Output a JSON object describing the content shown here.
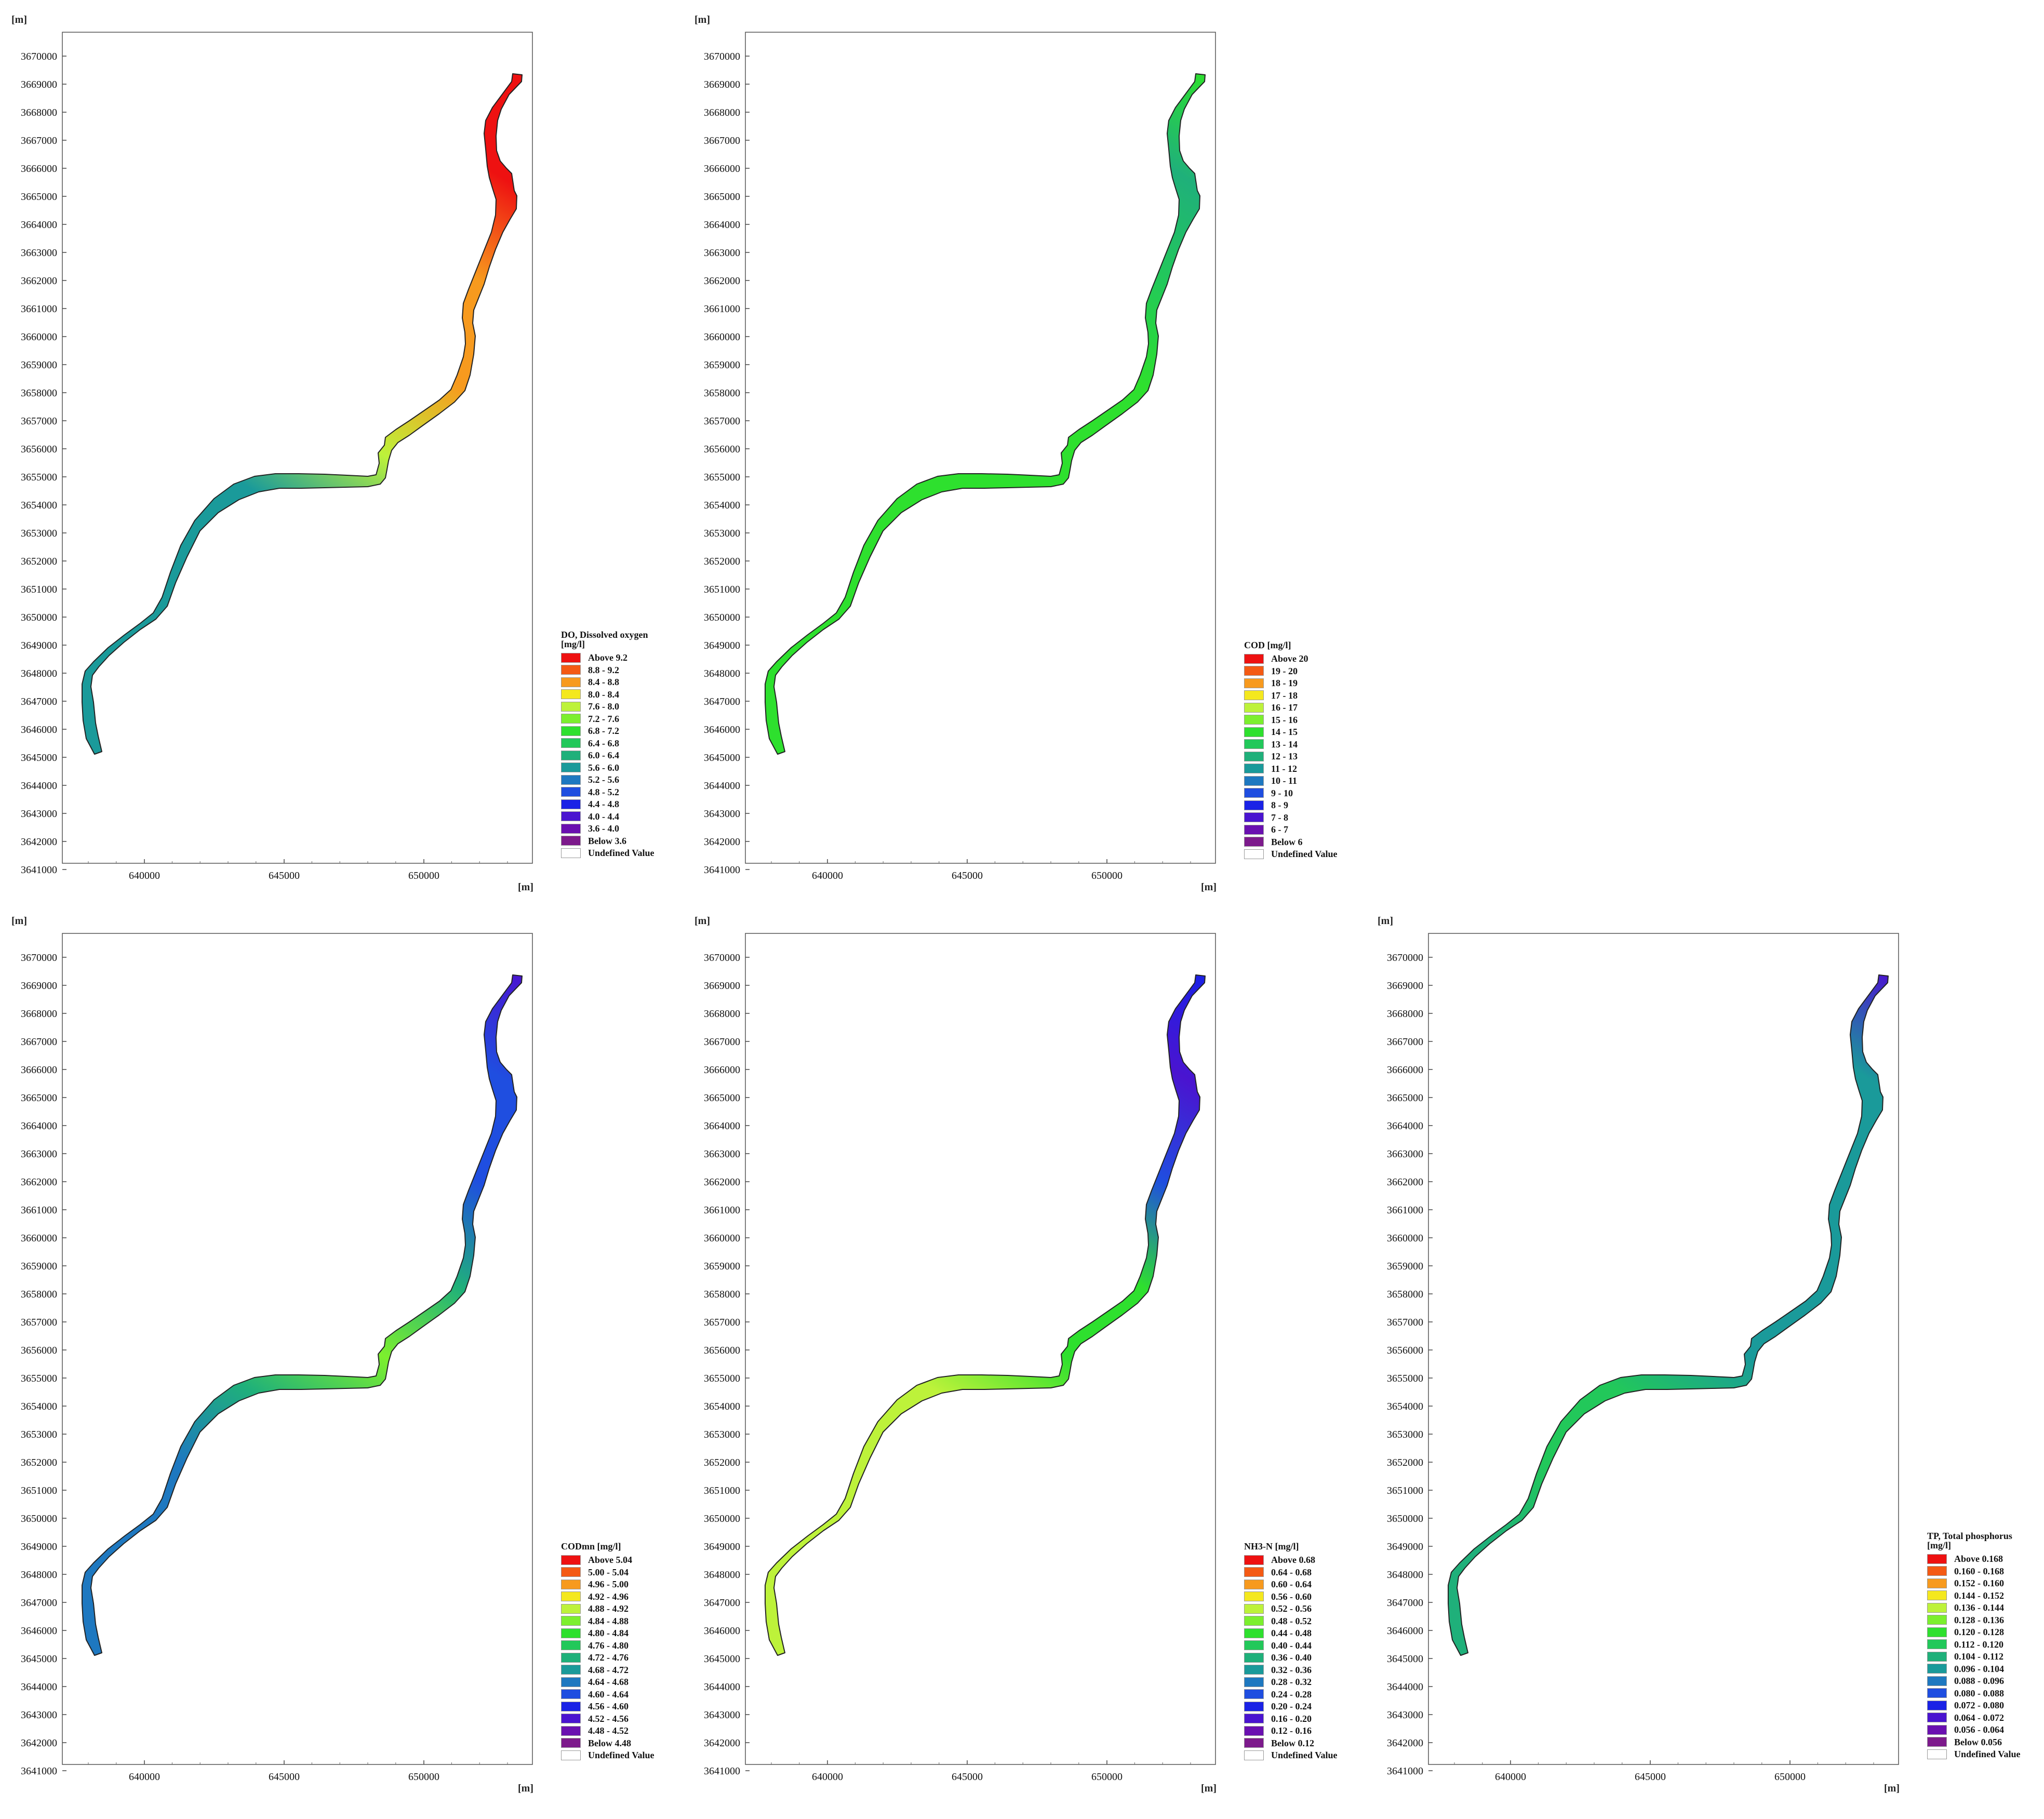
{
  "axis": {
    "unit": "[m]",
    "y_ticks": [
      "3670000",
      "3669000",
      "3668000",
      "3667000",
      "3666000",
      "3665000",
      "3664000",
      "3663000",
      "3662000",
      "3661000",
      "3660000",
      "3659000",
      "3658000",
      "3657000",
      "3656000",
      "3655000",
      "3654000",
      "3653000",
      "3652000",
      "3651000",
      "3650000",
      "3649000",
      "3648000",
      "3647000",
      "3646000",
      "3645000",
      "3644000",
      "3643000",
      "3642000",
      "3641000"
    ],
    "x_ticks": [
      "640000",
      "645000",
      "650000"
    ]
  },
  "panels": [
    {
      "id": "do",
      "legend_title": "DO, Dissolved oxygen\n[mg/l]",
      "legend": [
        {
          "label": "Above 9.2",
          "color": "#ee1111"
        },
        {
          "label": "8.8 - 9.2",
          "color": "#f45a14"
        },
        {
          "label": "8.4 - 8.8",
          "color": "#f79a1e"
        },
        {
          "label": "8.0 - 8.4",
          "color": "#f4e81e"
        },
        {
          "label": "7.6 - 8.0",
          "color": "#bdf23a"
        },
        {
          "label": "7.2 - 7.6",
          "color": "#7cef2e"
        },
        {
          "label": "6.8 - 7.2",
          "color": "#2ee02e"
        },
        {
          "label": "6.4 - 6.8",
          "color": "#22c85a"
        },
        {
          "label": "6.0 - 6.4",
          "color": "#1fb07a"
        },
        {
          "label": "5.6 - 6.0",
          "color": "#1a9a9a"
        },
        {
          "label": "5.2 - 5.6",
          "color": "#1e78c0"
        },
        {
          "label": "4.8 - 5.2",
          "color": "#1f4ee0"
        },
        {
          "label": "4.4 - 4.8",
          "color": "#1a22e6"
        },
        {
          "label": "4.0 - 4.4",
          "color": "#4a14d0"
        },
        {
          "label": "3.6 - 4.0",
          "color": "#6a10b0"
        },
        {
          "label": "Below 3.6",
          "color": "#7d1a8c"
        },
        {
          "label": "Undefined Value",
          "color": "#ffffff"
        }
      ],
      "fill_stops": [
        "#1a9a9a",
        "#1a9a9a",
        "#1a9a9a",
        "#1a9a9a",
        "#bdf23a",
        "#f79a1e",
        "#f79a1e",
        "#ee1111",
        "#ee1111"
      ]
    },
    {
      "id": "cod",
      "legend_title": "COD [mg/l]",
      "legend": [
        {
          "label": "Above 20",
          "color": "#ee1111"
        },
        {
          "label": "19 - 20",
          "color": "#f45a14"
        },
        {
          "label": "18 - 19",
          "color": "#f79a1e"
        },
        {
          "label": "17 - 18",
          "color": "#f4e81e"
        },
        {
          "label": "16 - 17",
          "color": "#bdf23a"
        },
        {
          "label": "15 - 16",
          "color": "#7cef2e"
        },
        {
          "label": "14 - 15",
          "color": "#2ee02e"
        },
        {
          "label": "13 - 14",
          "color": "#22c85a"
        },
        {
          "label": "12 - 13",
          "color": "#1fb07a"
        },
        {
          "label": "11 - 12",
          "color": "#1a9a9a"
        },
        {
          "label": "10 - 11",
          "color": "#1e78c0"
        },
        {
          "label": "9 - 10",
          "color": "#1f4ee0"
        },
        {
          "label": "8 -  9",
          "color": "#1a22e6"
        },
        {
          "label": "7 -  8",
          "color": "#4a14d0"
        },
        {
          "label": "6 -  7",
          "color": "#6a10b0"
        },
        {
          "label": "Below  6",
          "color": "#7d1a8c"
        },
        {
          "label": "Undefined Value",
          "color": "#ffffff"
        }
      ],
      "fill_stops": [
        "#2ee02e",
        "#2ee02e",
        "#2ee02e",
        "#2ee02e",
        "#2ee02e",
        "#2ee02e",
        "#22c85a",
        "#1fb07a",
        "#2ee02e"
      ]
    },
    {
      "id": "codmn",
      "legend_title": "CODmn [mg/l]",
      "legend": [
        {
          "label": "Above 5.04",
          "color": "#ee1111"
        },
        {
          "label": "5.00 - 5.04",
          "color": "#f45a14"
        },
        {
          "label": "4.96 - 5.00",
          "color": "#f79a1e"
        },
        {
          "label": "4.92 - 4.96",
          "color": "#f4e81e"
        },
        {
          "label": "4.88 - 4.92",
          "color": "#bdf23a"
        },
        {
          "label": "4.84 - 4.88",
          "color": "#7cef2e"
        },
        {
          "label": "4.80 - 4.84",
          "color": "#2ee02e"
        },
        {
          "label": "4.76 - 4.80",
          "color": "#22c85a"
        },
        {
          "label": "4.72 - 4.76",
          "color": "#1fb07a"
        },
        {
          "label": "4.68 - 4.72",
          "color": "#1a9a9a"
        },
        {
          "label": "4.64 - 4.68",
          "color": "#1e78c0"
        },
        {
          "label": "4.60 - 4.64",
          "color": "#1f4ee0"
        },
        {
          "label": "4.56 - 4.60",
          "color": "#1a22e6"
        },
        {
          "label": "4.52 - 4.56",
          "color": "#4a14d0"
        },
        {
          "label": "4.48 - 4.52",
          "color": "#6a10b0"
        },
        {
          "label": "Below 4.48",
          "color": "#7d1a8c"
        },
        {
          "label": "Undefined Value",
          "color": "#ffffff"
        }
      ],
      "fill_stops": [
        "#1e78c0",
        "#1e78c0",
        "#1e78c0",
        "#1fb07a",
        "#7cef2e",
        "#1fb07a",
        "#1f4ee0",
        "#1f4ee0",
        "#4a14d0"
      ]
    },
    {
      "id": "nh3n",
      "legend_title": "NH3-N [mg/l]",
      "legend": [
        {
          "label": "Above 0.68",
          "color": "#ee1111"
        },
        {
          "label": "0.64 - 0.68",
          "color": "#f45a14"
        },
        {
          "label": "0.60 - 0.64",
          "color": "#f79a1e"
        },
        {
          "label": "0.56 - 0.60",
          "color": "#f4e81e"
        },
        {
          "label": "0.52 - 0.56",
          "color": "#bdf23a"
        },
        {
          "label": "0.48 - 0.52",
          "color": "#7cef2e"
        },
        {
          "label": "0.44 - 0.48",
          "color": "#2ee02e"
        },
        {
          "label": "0.40 - 0.44",
          "color": "#22c85a"
        },
        {
          "label": "0.36 - 0.40",
          "color": "#1fb07a"
        },
        {
          "label": "0.32 - 0.36",
          "color": "#1a9a9a"
        },
        {
          "label": "0.28 - 0.32",
          "color": "#1e78c0"
        },
        {
          "label": "0.24 - 0.28",
          "color": "#1f4ee0"
        },
        {
          "label": "0.20 - 0.24",
          "color": "#1a22e6"
        },
        {
          "label": "0.16 - 0.20",
          "color": "#4a14d0"
        },
        {
          "label": "0.12 - 0.16",
          "color": "#6a10b0"
        },
        {
          "label": "Below 0.12",
          "color": "#7d1a8c"
        },
        {
          "label": "Undefined Value",
          "color": "#ffffff"
        }
      ],
      "fill_stops": [
        "#bdf23a",
        "#bdf23a",
        "#bdf23a",
        "#bdf23a",
        "#2ee02e",
        "#2ee02e",
        "#1f4ee0",
        "#4a14d0",
        "#1a22e6"
      ]
    },
    {
      "id": "tp",
      "legend_title": "TP, Total phosphorus\n[mg/l]",
      "legend": [
        {
          "label": "Above 0.168",
          "color": "#ee1111"
        },
        {
          "label": "0.160 - 0.168",
          "color": "#f45a14"
        },
        {
          "label": "0.152 - 0.160",
          "color": "#f79a1e"
        },
        {
          "label": "0.144 - 0.152",
          "color": "#f4e81e"
        },
        {
          "label": "0.136 - 0.144",
          "color": "#bdf23a"
        },
        {
          "label": "0.128 - 0.136",
          "color": "#7cef2e"
        },
        {
          "label": "0.120 - 0.128",
          "color": "#2ee02e"
        },
        {
          "label": "0.112 - 0.120",
          "color": "#22c85a"
        },
        {
          "label": "0.104 - 0.112",
          "color": "#1fb07a"
        },
        {
          "label": "0.096 - 0.104",
          "color": "#1a9a9a"
        },
        {
          "label": "0.088 - 0.096",
          "color": "#1e78c0"
        },
        {
          "label": "0.080 - 0.088",
          "color": "#1f4ee0"
        },
        {
          "label": "0.072 - 0.080",
          "color": "#1a22e6"
        },
        {
          "label": "0.064 - 0.072",
          "color": "#4a14d0"
        },
        {
          "label": "0.056 - 0.064",
          "color": "#6a10b0"
        },
        {
          "label": "Below 0.056",
          "color": "#7d1a8c"
        },
        {
          "label": "Undefined Value",
          "color": "#ffffff"
        }
      ],
      "fill_stops": [
        "#1fb07a",
        "#1fb07a",
        "#22c85a",
        "#22c85a",
        "#1a9a9a",
        "#1a9a9a",
        "#1a9a9a",
        "#1a9a9a",
        "#4a14d0"
      ]
    }
  ]
}
